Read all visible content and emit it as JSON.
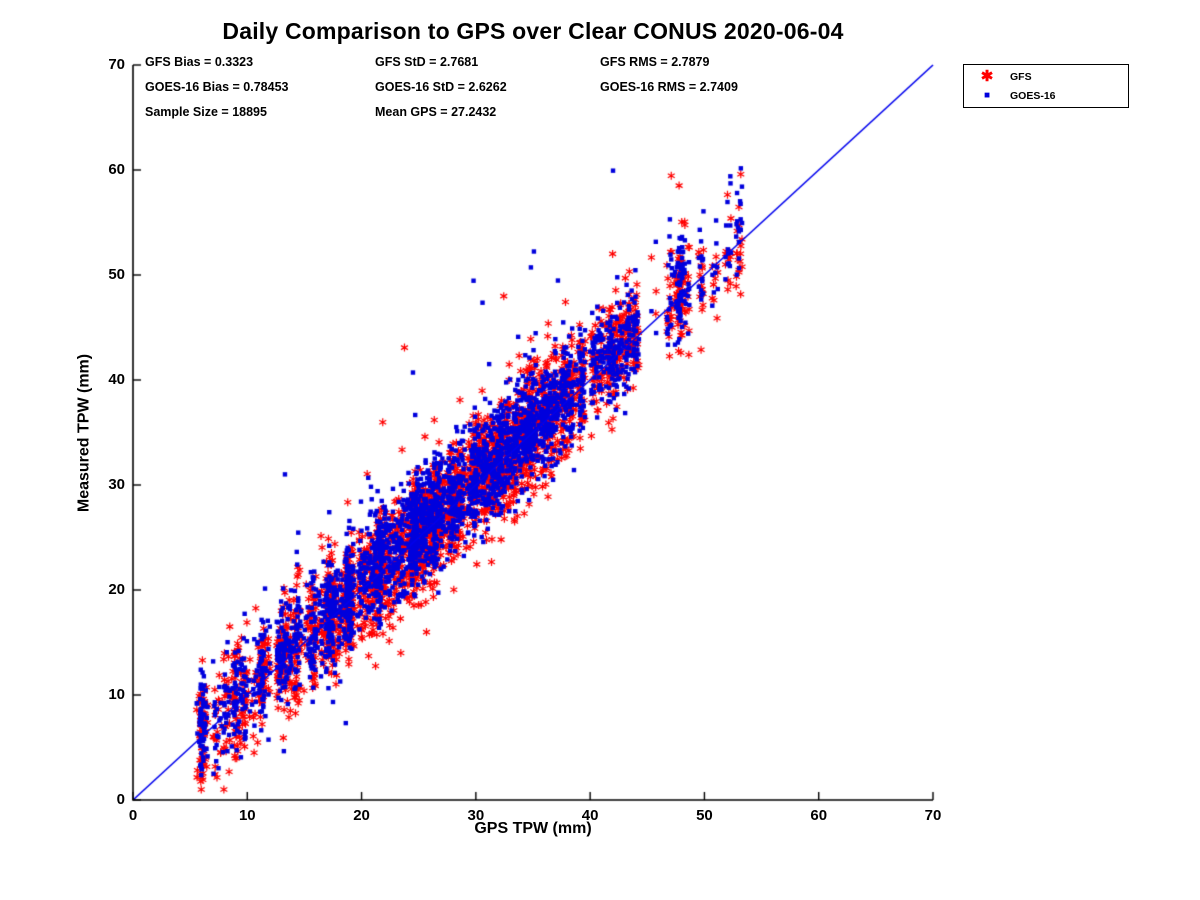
{
  "title": "Daily Comparison to GPS over Clear CONUS 2020-06-04",
  "stats": {
    "lines": [
      {
        "text": "GFS Bias = 0.3323",
        "col": 0,
        "row": 0
      },
      {
        "text": "GFS StD = 2.7681",
        "col": 1,
        "row": 0
      },
      {
        "text": "GFS RMS = 2.7879",
        "col": 2,
        "row": 0
      },
      {
        "text": "GOES-16 Bias = 0.78453",
        "col": 0,
        "row": 1
      },
      {
        "text": "GOES-16 StD = 2.6262",
        "col": 1,
        "row": 1
      },
      {
        "text": "GOES-16 RMS = 2.7409",
        "col": 2,
        "row": 1
      },
      {
        "text": "Sample Size = 18895",
        "col": 0,
        "row": 2
      },
      {
        "text": "Mean GPS = 27.2432",
        "col": 1,
        "row": 2
      }
    ]
  },
  "chart_data": {
    "type": "scatter",
    "title": "Daily Comparison to GPS over Clear CONUS 2020-06-04",
    "xlabel": "GPS TPW (mm)",
    "ylabel": "Measured TPW (mm)",
    "xlim": [
      0,
      70
    ],
    "ylim": [
      0,
      70
    ],
    "xticks": [
      0,
      10,
      20,
      30,
      40,
      50,
      60,
      70
    ],
    "yticks": [
      0,
      10,
      20,
      30,
      40,
      50,
      60,
      70
    ],
    "grid": false,
    "legend_position": "top-right-outside",
    "axis_color": "#000000",
    "background": "#ffffff",
    "reference_line": {
      "x": [
        0,
        70
      ],
      "y": [
        0,
        70
      ],
      "color": "#0000ee",
      "width": 1.6
    },
    "sample_size": 18895,
    "mean_gps": 27.2432,
    "data_x_range": [
      5.5,
      57.5
    ],
    "series": [
      {
        "name": "GFS",
        "marker": "asterisk",
        "color": "#ff0000",
        "bias": 0.3323,
        "std": 2.7681,
        "rms": 2.7879
      },
      {
        "name": "GOES-16",
        "marker": "square",
        "color": "#0000dd",
        "bias": 0.78453,
        "std": 2.6262,
        "rms": 2.7409
      }
    ]
  }
}
